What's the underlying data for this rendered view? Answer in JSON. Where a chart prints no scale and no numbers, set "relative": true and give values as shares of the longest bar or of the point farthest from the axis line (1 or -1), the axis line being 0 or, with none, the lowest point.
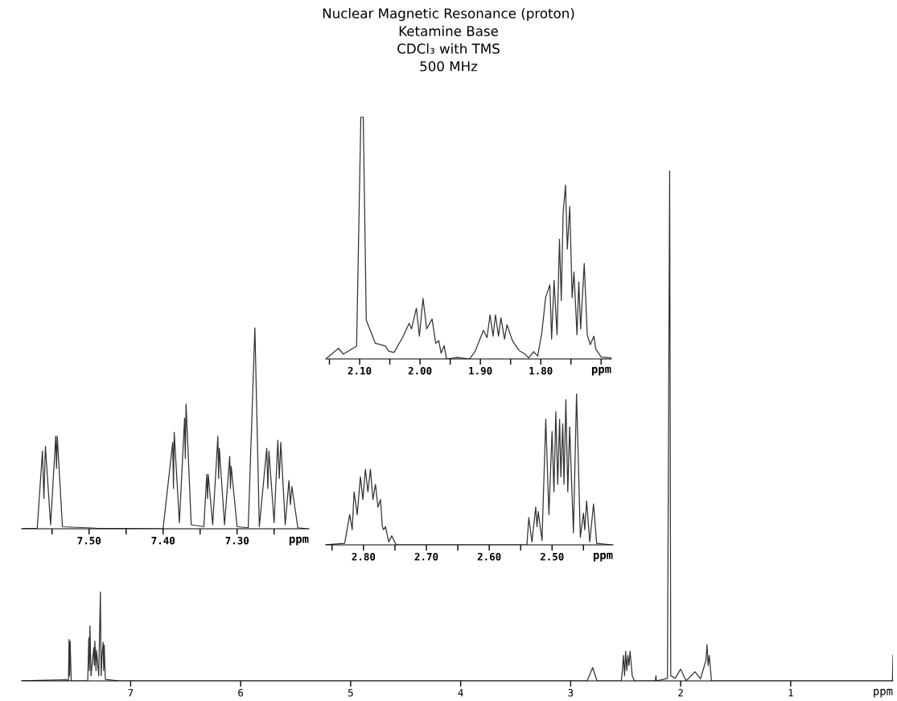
{
  "chart_data": [
    {
      "type": "line",
      "title": "Nuclear Magnetic Resonance (proton)",
      "subtitle": "Ketamine Base\nCDCl₃ with TMS\n500 MHz",
      "relative": true,
      "color": "#333333",
      "xlabel": "ppm",
      "xlim": [
        7.99,
        0.07
      ],
      "xticks": [
        7,
        6,
        5,
        4,
        3,
        2,
        1
      ],
      "x": [
        7.99,
        7.58,
        7.565,
        7.56,
        7.555,
        7.55,
        7.54,
        7.39,
        7.38,
        7.375,
        7.37,
        7.36,
        7.335,
        7.33,
        7.325,
        7.315,
        7.31,
        7.29,
        7.275,
        7.268,
        7.26,
        7.25,
        7.245,
        7.24,
        7.23,
        7.1,
        2.85,
        2.8,
        2.76,
        2.54,
        2.53,
        2.52,
        2.51,
        2.5,
        2.49,
        2.48,
        2.47,
        2.46,
        2.44,
        2.42,
        2.23,
        2.225,
        2.22,
        2.12,
        2.1,
        2.09,
        2.05,
        2.0,
        1.95,
        1.87,
        1.82,
        1.77,
        1.76,
        1.75,
        1.74,
        1.72,
        0.09,
        0.075,
        0.07
      ],
      "values": [
        0,
        0.002,
        0,
        0.081,
        0.01,
        0.078,
        0,
        0,
        0.084,
        0.02,
        0.108,
        0.01,
        0.065,
        0.03,
        0.078,
        0.02,
        0.06,
        0.01,
        0.174,
        0.01,
        0.05,
        0.076,
        0.02,
        0.07,
        0.003,
        0,
        0,
        0.026,
        0,
        0,
        0.02,
        0.05,
        0.01,
        0.058,
        0.02,
        0.05,
        0.03,
        0.058,
        0.01,
        0,
        0,
        0.01,
        0,
        0.005,
        1.0,
        0.01,
        0.005,
        0.023,
        0,
        0.018,
        0.004,
        0.04,
        0.071,
        0.03,
        0.05,
        0,
        0,
        0,
        0.05
      ]
    },
    {
      "type": "line",
      "relative": true,
      "color": "#333333",
      "xlabel": "ppm",
      "xlim": [
        2.156,
        1.683
      ],
      "xticks": [
        {
          "value": 2.15,
          "label": null
        },
        {
          "value": 2.1,
          "label": "2.10"
        },
        {
          "value": 2.05,
          "label": null
        },
        {
          "value": 2.0,
          "label": "2.00"
        },
        {
          "value": 1.95,
          "label": null
        },
        {
          "value": 1.9,
          "label": "1.90"
        },
        {
          "value": 1.85,
          "label": null
        },
        {
          "value": 1.8,
          "label": "1.80"
        },
        {
          "value": 1.75,
          "label": null
        },
        {
          "value": 1.7,
          "label": null
        }
      ],
      "x": [
        2.156,
        2.135,
        2.127,
        2.105,
        2.098,
        2.094,
        2.089,
        2.074,
        2.057,
        2.052,
        2.043,
        2.029,
        2.018,
        2.014,
        2.006,
        2.001,
        1.995,
        1.989,
        1.98,
        1.974,
        1.969,
        1.965,
        1.96,
        1.956,
        1.938,
        1.918,
        1.909,
        1.895,
        1.889,
        1.884,
        1.879,
        1.875,
        1.87,
        1.866,
        1.86,
        1.856,
        1.847,
        1.836,
        1.825,
        1.82,
        1.812,
        1.805,
        1.798,
        1.792,
        1.785,
        1.782,
        1.778,
        1.773,
        1.769,
        1.766,
        1.763,
        1.759,
        1.756,
        1.752,
        1.748,
        1.745,
        1.74,
        1.737,
        1.734,
        1.728,
        1.723,
        1.718,
        1.712,
        1.709,
        1.7,
        1.683
      ],
      "values": [
        0,
        0.044,
        0.02,
        0.053,
        1.0,
        1.0,
        0.16,
        0.065,
        0.053,
        0.032,
        0.027,
        0.088,
        0.147,
        0.124,
        0.21,
        0.094,
        0.25,
        0.124,
        0.165,
        0.065,
        0.076,
        0.024,
        0.055,
        0,
        0.006,
        0,
        0.03,
        0.118,
        0.088,
        0.182,
        0.094,
        0.182,
        0.094,
        0.17,
        0.082,
        0.141,
        0.076,
        0.035,
        0.018,
        0.004,
        0.03,
        0.012,
        0.112,
        0.253,
        0.306,
        0.082,
        0.324,
        0.1,
        0.494,
        0.241,
        0.6,
        0.718,
        0.453,
        0.629,
        0.253,
        0.359,
        0.1,
        0.318,
        0.124,
        0.394,
        0.1,
        0.059,
        0.094,
        0.041,
        0.008,
        0.004
      ]
    },
    {
      "type": "line",
      "relative": true,
      "color": "#333333",
      "xlabel": "ppm",
      "xlim": [
        2.86,
        2.403
      ],
      "xticks": [
        {
          "value": 2.85,
          "label": null
        },
        {
          "value": 2.8,
          "label": "2.80"
        },
        {
          "value": 2.75,
          "label": null
        },
        {
          "value": 2.7,
          "label": "2.70"
        },
        {
          "value": 2.65,
          "label": null
        },
        {
          "value": 2.6,
          "label": "2.60"
        },
        {
          "value": 2.55,
          "label": null
        },
        {
          "value": 2.5,
          "label": "2.50"
        },
        {
          "value": 2.45,
          "label": null
        }
      ],
      "x": [
        2.86,
        2.83,
        2.822,
        2.818,
        2.815,
        2.81,
        2.805,
        2.801,
        2.797,
        2.793,
        2.789,
        2.785,
        2.781,
        2.777,
        2.773,
        2.77,
        2.768,
        2.765,
        2.76,
        2.755,
        2.748,
        2.54,
        2.537,
        2.532,
        2.526,
        2.524,
        2.522,
        2.516,
        2.51,
        2.505,
        2.5,
        2.497,
        2.494,
        2.491,
        2.488,
        2.486,
        2.483,
        2.481,
        2.478,
        2.475,
        2.472,
        2.466,
        2.461,
        2.455,
        2.45,
        2.448,
        2.445,
        2.44,
        2.434,
        2.429,
        2.405
      ],
      "values": [
        0,
        0.01,
        0.2,
        0.1,
        0.35,
        0.2,
        0.45,
        0.3,
        0.5,
        0.35,
        0.5,
        0.3,
        0.4,
        0.25,
        0.3,
        0.12,
        0.1,
        0.12,
        0.02,
        0.06,
        0,
        0,
        0.18,
        0.02,
        0.25,
        0.12,
        0.22,
        0.03,
        0.83,
        0.2,
        0.75,
        0.35,
        0.88,
        0.4,
        0.83,
        0.45,
        0.8,
        0.4,
        0.96,
        0.35,
        0.78,
        0.08,
        1.0,
        0.05,
        0.21,
        0.1,
        0.29,
        0.02,
        0.27,
        0.01,
        0
      ]
    },
    {
      "type": "line",
      "relative": true,
      "color": "#333333",
      "xlabel": "ppm",
      "xlim": [
        7.591,
        7.203
      ],
      "xticks": [
        {
          "value": 7.55,
          "label": null
        },
        {
          "value": 7.5,
          "label": "7.50"
        },
        {
          "value": 7.45,
          "label": null
        },
        {
          "value": 7.4,
          "label": "7.40"
        },
        {
          "value": 7.35,
          "label": null
        },
        {
          "value": 7.3,
          "label": "7.30"
        },
        {
          "value": 7.25,
          "label": null
        }
      ],
      "x": [
        7.591,
        7.57,
        7.563,
        7.561,
        7.559,
        7.552,
        7.545,
        7.544,
        7.543,
        7.536,
        7.49,
        7.4,
        7.387,
        7.386,
        7.385,
        7.378,
        7.371,
        7.37,
        7.369,
        7.362,
        7.345,
        7.341,
        7.34,
        7.339,
        7.333,
        7.326,
        7.325,
        7.324,
        7.317,
        7.31,
        7.309,
        7.308,
        7.3,
        7.285,
        7.276,
        7.27,
        7.26,
        7.2585,
        7.257,
        7.25,
        7.245,
        7.243,
        7.241,
        7.235,
        7.23,
        7.228,
        7.226,
        7.218,
        7.205
      ],
      "values": [
        0,
        0.003,
        0.386,
        0.15,
        0.41,
        0.02,
        0.46,
        0.3,
        0.46,
        0.01,
        0.003,
        0,
        0.43,
        0.2,
        0.48,
        0.03,
        0.55,
        0.35,
        0.62,
        0.02,
        0.01,
        0.27,
        0.15,
        0.27,
        0.02,
        0.46,
        0.25,
        0.4,
        0.02,
        0.36,
        0.2,
        0.31,
        0.01,
        0.005,
        1.0,
        0.01,
        0.4,
        0.2,
        0.386,
        0.03,
        0.44,
        0.25,
        0.43,
        0.02,
        0.24,
        0.12,
        0.21,
        0.005,
        0
      ]
    }
  ]
}
